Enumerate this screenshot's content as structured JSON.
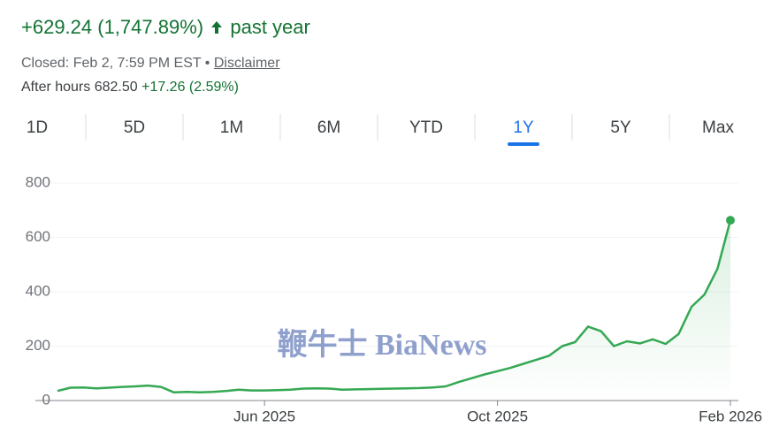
{
  "header": {
    "change": "+629.24 (1,747.89%)",
    "period": "past year",
    "closed": "Closed: Feb 2, 7:59 PM EST",
    "disclaimer": "Disclaimer",
    "after_hours_label": "After hours 682.50",
    "after_hours_change": "+17.26 (2.59%)"
  },
  "tabs": {
    "items": [
      "1D",
      "5D",
      "1M",
      "6M",
      "YTD",
      "1Y",
      "5Y",
      "Max"
    ],
    "selected": "1Y"
  },
  "watermark": "鞭牛士 BiaNews",
  "chart_data": {
    "type": "line",
    "categories": [
      null,
      null,
      null,
      null,
      null,
      null,
      null,
      null,
      null,
      null,
      null,
      null,
      null,
      null,
      null,
      null,
      "Jun 2025",
      null,
      null,
      null,
      null,
      null,
      null,
      null,
      null,
      null,
      null,
      null,
      null,
      null,
      null,
      null,
      null,
      null,
      "Oct 2025",
      null,
      null,
      null,
      null,
      null,
      null,
      null,
      null,
      null,
      null,
      null,
      null,
      null,
      null,
      null,
      null,
      null,
      "Feb 2026"
    ],
    "values": [
      35,
      47,
      48,
      45,
      47,
      50,
      52,
      55,
      50,
      30,
      32,
      30,
      32,
      35,
      40,
      37,
      37,
      38,
      40,
      44,
      45,
      44,
      40,
      41,
      42,
      43,
      44,
      45,
      46,
      48,
      52,
      68,
      82,
      96,
      108,
      120,
      135,
      150,
      165,
      200,
      215,
      272,
      255,
      200,
      218,
      210,
      225,
      208,
      245,
      345,
      390,
      485,
      663
    ],
    "color": "#34a853",
    "ylim": [
      0,
      800
    ],
    "yticks": [
      0,
      200,
      400,
      600,
      800
    ],
    "grid": true
  }
}
